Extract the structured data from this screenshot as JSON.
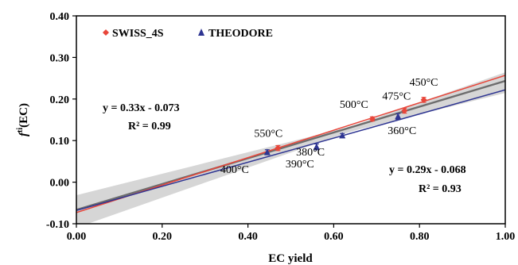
{
  "chart_data": {
    "type": "scatter",
    "xlabel": "EC yield",
    "ylabel_main": "f",
    "ylabel_sup": "ti",
    "ylabel_tail": "(EC)",
    "xlim": [
      0,
      1
    ],
    "ylim": [
      -0.1,
      0.4
    ],
    "x_ticks": [
      0.0,
      0.2,
      0.4,
      0.6,
      0.8,
      1.0
    ],
    "x_tick_labels": [
      "0.00",
      "0.20",
      "0.40",
      "0.60",
      "0.80",
      "1.00"
    ],
    "y_ticks": [
      -0.1,
      0.0,
      0.1,
      0.2,
      0.3,
      0.4
    ],
    "y_tick_labels": [
      "-0.10",
      "0.00",
      "0.10",
      "0.20",
      "0.30",
      "0.40"
    ],
    "grid": false,
    "legend_position": "top-left",
    "series": [
      {
        "name": "SWISS_4S",
        "color": "#e8463a",
        "marker": "diamond",
        "points": [
          {
            "x": 0.47,
            "y": 0.082,
            "err": 0.006,
            "label": "550°C"
          },
          {
            "x": 0.69,
            "y": 0.152,
            "err": 0.005,
            "label": "500°C"
          },
          {
            "x": 0.765,
            "y": 0.172,
            "err": 0.006,
            "label": "475°C"
          },
          {
            "x": 0.81,
            "y": 0.198,
            "err": 0.006,
            "label": "450°C"
          }
        ],
        "fit": {
          "slope": 0.33,
          "intercept": -0.073,
          "equation": "y = 0.33x - 0.073",
          "r2": "R² = 0.99"
        }
      },
      {
        "name": "THEODORE",
        "color": "#2e3592",
        "marker": "triangle",
        "points": [
          {
            "x": 0.445,
            "y": 0.072,
            "err": 0.006,
            "label": "400°C"
          },
          {
            "x": 0.56,
            "y": 0.085,
            "err": 0.007,
            "label": "390°C"
          },
          {
            "x": 0.62,
            "y": 0.112,
            "err": 0.005,
            "label": "380°C"
          },
          {
            "x": 0.75,
            "y": 0.158,
            "err": 0.007,
            "label": "360°C"
          }
        ],
        "fit": {
          "slope": 0.29,
          "intercept": -0.068,
          "equation": "y = 0.29x - 0.068",
          "r2": "R² = 0.93"
        }
      }
    ]
  },
  "colors": {
    "combined_fit_line": "#6d6d6d",
    "confidence_band": "#c8c8c8"
  }
}
